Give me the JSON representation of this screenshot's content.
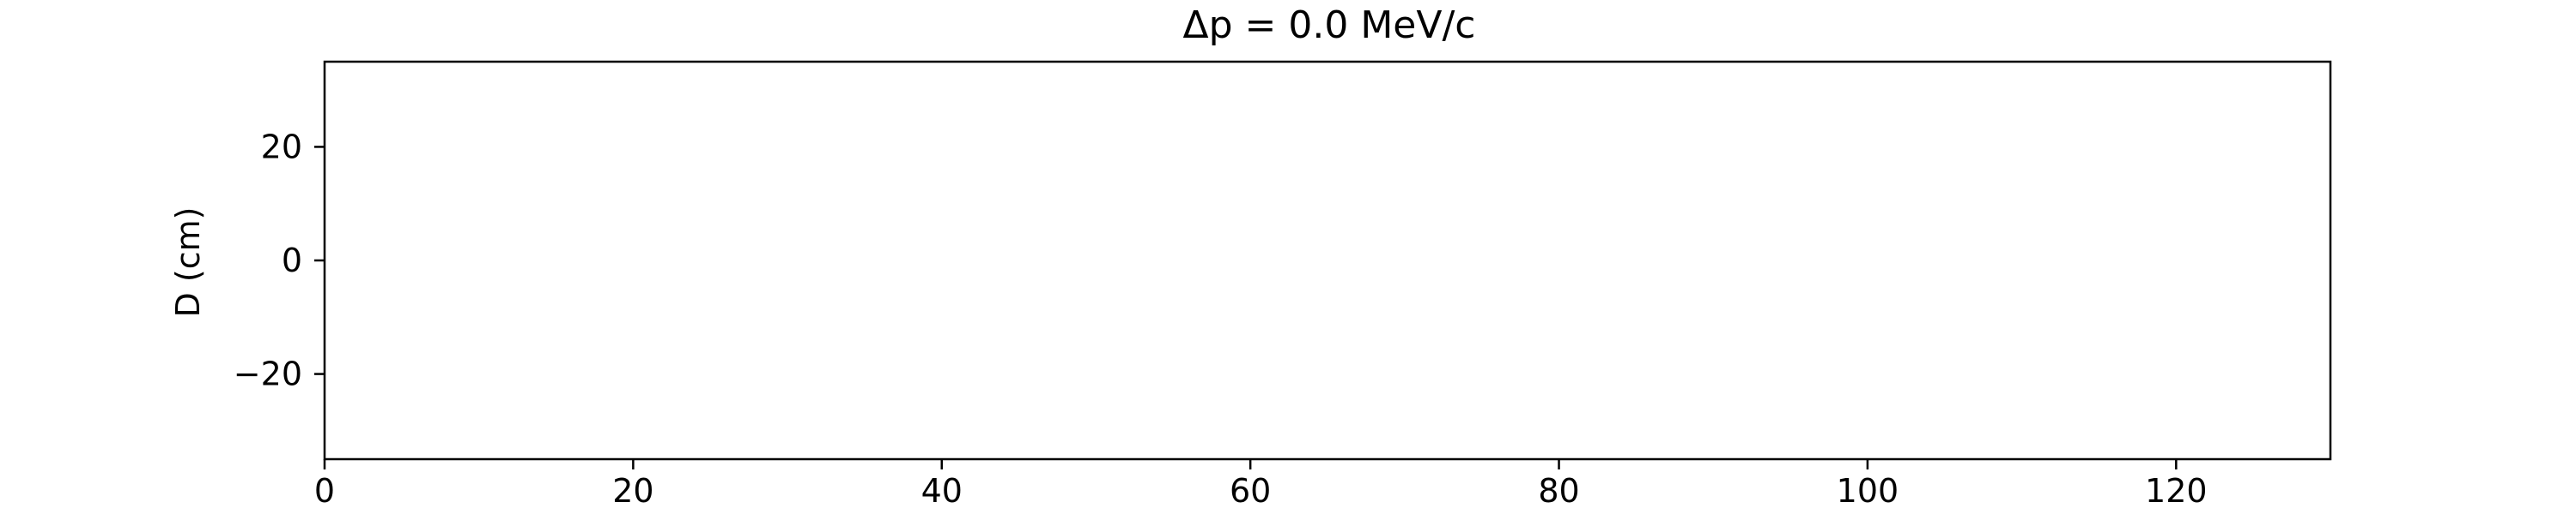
{
  "chart_data": {
    "type": "line",
    "title": "Δp = 0.0 MeV/c",
    "xlabel": "",
    "ylabel": "D (cm)",
    "xlim": [
      0,
      130
    ],
    "ylim": [
      -35,
      35
    ],
    "x_ticks": [
      0,
      20,
      40,
      60,
      80,
      100,
      120
    ],
    "x_tick_labels": [
      "0",
      "20",
      "40",
      "60",
      "80",
      "100",
      "120"
    ],
    "y_ticks": [
      20,
      0,
      -20
    ],
    "y_tick_labels": [
      "20",
      "0",
      "−20"
    ],
    "grid": false,
    "legend": "none",
    "series": []
  }
}
